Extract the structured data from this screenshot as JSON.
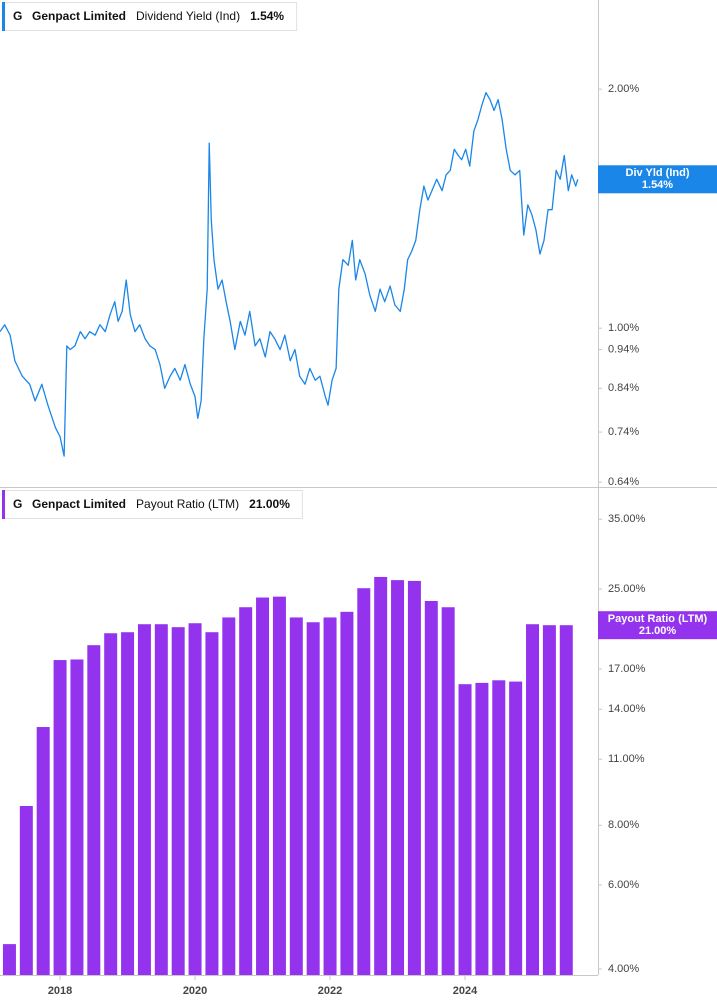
{
  "chart_data": [
    {
      "type": "line",
      "symbol": "G",
      "company": "Genpact Limited",
      "x": [
        2017.11,
        2017.18,
        2017.26,
        2017.33,
        2017.44,
        2017.55,
        2017.63,
        2017.73,
        2017.82,
        2017.93,
        2018.0,
        2018.06,
        2018.1,
        2018.15,
        2018.22,
        2018.3,
        2018.37,
        2018.44,
        2018.52,
        2018.59,
        2018.67,
        2018.74,
        2018.81,
        2018.86,
        2018.92,
        2018.98,
        2019.04,
        2019.11,
        2019.18,
        2019.26,
        2019.33,
        2019.41,
        2019.48,
        2019.55,
        2019.63,
        2019.7,
        2019.78,
        2019.85,
        2019.93,
        2020.0,
        2020.04,
        2020.09,
        2020.13,
        2020.18,
        2020.21,
        2020.24,
        2020.28,
        2020.34,
        2020.4,
        2020.46,
        2020.52,
        2020.59,
        2020.67,
        2020.74,
        2020.81,
        2020.89,
        2020.96,
        2021.04,
        2021.11,
        2021.18,
        2021.26,
        2021.33,
        2021.41,
        2021.48,
        2021.55,
        2021.63,
        2021.7,
        2021.78,
        2021.85,
        2021.93,
        2021.97,
        2022.03,
        2022.09,
        2022.13,
        2022.19,
        2022.27,
        2022.33,
        2022.38,
        2022.44,
        2022.52,
        2022.59,
        2022.67,
        2022.74,
        2022.81,
        2022.89,
        2022.96,
        2023.04,
        2023.1,
        2023.15,
        2023.21,
        2023.27,
        2023.33,
        2023.39,
        2023.45,
        2023.51,
        2023.58,
        2023.66,
        2023.72,
        2023.78,
        2023.84,
        2023.9,
        2023.95,
        2024.01,
        2024.07,
        2024.13,
        2024.19,
        2024.25,
        2024.31,
        2024.37,
        2024.43,
        2024.49,
        2024.55,
        2024.61,
        2024.67,
        2024.74,
        2024.81,
        2024.87,
        2024.93,
        2024.99,
        2025.05,
        2025.11,
        2025.17,
        2025.23,
        2025.29,
        2025.35,
        2025.41,
        2025.47,
        2025.53,
        2025.58,
        2025.64,
        2025.67
      ],
      "series": [
        {
          "name": "Dividend Yield (Ind)",
          "color": "#1a86e8",
          "values": [
            0.99,
            1.01,
            0.98,
            0.91,
            0.87,
            0.85,
            0.81,
            0.85,
            0.8,
            0.75,
            0.73,
            0.69,
            0.95,
            0.94,
            0.95,
            0.99,
            0.97,
            0.99,
            0.98,
            1.01,
            0.99,
            1.04,
            1.08,
            1.02,
            1.05,
            1.15,
            1.04,
            0.99,
            1.01,
            0.97,
            0.95,
            0.94,
            0.9,
            0.84,
            0.87,
            0.89,
            0.86,
            0.9,
            0.85,
            0.82,
            0.77,
            0.81,
            0.97,
            1.12,
            1.71,
            1.37,
            1.22,
            1.12,
            1.15,
            1.08,
            1.02,
            0.94,
            1.02,
            0.98,
            1.05,
            0.95,
            0.97,
            0.92,
            0.99,
            0.97,
            0.94,
            0.98,
            0.91,
            0.94,
            0.87,
            0.85,
            0.89,
            0.86,
            0.87,
            0.82,
            0.8,
            0.86,
            0.89,
            1.12,
            1.22,
            1.2,
            1.29,
            1.15,
            1.22,
            1.17,
            1.1,
            1.05,
            1.12,
            1.08,
            1.13,
            1.07,
            1.05,
            1.12,
            1.22,
            1.25,
            1.29,
            1.41,
            1.51,
            1.45,
            1.49,
            1.54,
            1.49,
            1.56,
            1.58,
            1.68,
            1.65,
            1.63,
            1.68,
            1.6,
            1.77,
            1.83,
            1.91,
            1.98,
            1.94,
            1.88,
            1.94,
            1.83,
            1.68,
            1.58,
            1.56,
            1.58,
            1.31,
            1.43,
            1.39,
            1.33,
            1.24,
            1.29,
            1.41,
            1.41,
            1.58,
            1.54,
            1.65,
            1.49,
            1.56,
            1.51,
            1.54
          ]
        }
      ],
      "current": {
        "value": 1.54,
        "value_label": "1.54%",
        "tag_label": "Div Yld (Ind)"
      },
      "log_scale": true,
      "xlim": [
        2017.11,
        2025.97
      ],
      "ylim": [
        0.631,
        2.59
      ],
      "yticks": [
        {
          "value": 2,
          "label": "2.00%"
        },
        {
          "value": 1,
          "label": "1.00%"
        },
        {
          "value": 0.94,
          "label": "0.94%"
        },
        {
          "value": 0.84,
          "label": "0.84%"
        },
        {
          "value": 0.74,
          "label": "0.74%"
        },
        {
          "value": 0.64,
          "label": "0.64%"
        }
      ]
    },
    {
      "type": "bar",
      "symbol": "G",
      "company": "Genpact Limited",
      "x": [
        2017.25,
        2017.5,
        2017.75,
        2018,
        2018.25,
        2018.5,
        2018.75,
        2019,
        2019.25,
        2019.5,
        2019.75,
        2020,
        2020.25,
        2020.5,
        2020.75,
        2021,
        2021.25,
        2021.5,
        2021.75,
        2022,
        2022.25,
        2022.5,
        2022.75,
        2023,
        2023.25,
        2023.5,
        2023.75,
        2024,
        2024.25,
        2024.5,
        2024.75,
        2025,
        2025.25,
        2025.5
      ],
      "series": [
        {
          "name": "Payout Ratio (LTM)",
          "color": "#9333ee",
          "values": [
            4.51,
            8.78,
            12.85,
            17.75,
            17.8,
            19.07,
            20.2,
            20.3,
            21.1,
            21.1,
            20.8,
            21.2,
            20.3,
            21.8,
            22.9,
            24.0,
            24.1,
            21.8,
            21.3,
            21.8,
            22.4,
            25.1,
            26.5,
            26.1,
            26.0,
            23.6,
            22.9,
            15.8,
            15.9,
            16.1,
            16.0,
            21.1,
            21.0,
            21.0
          ]
        }
      ],
      "current": {
        "value": 21,
        "value_label": "21.00%",
        "tag_label": "Payout Ratio (LTM)"
      },
      "log_scale": true,
      "xlim": [
        2017.11,
        2025.97
      ],
      "ylim": [
        3.886,
        40.7
      ],
      "xticks": [
        2018,
        2020,
        2022,
        2024
      ],
      "yticks": [
        {
          "value": 35,
          "label": "35.00%"
        },
        {
          "value": 25,
          "label": "25.00%"
        },
        {
          "value": 17,
          "label": "17.00%"
        },
        {
          "value": 14,
          "label": "14.00%"
        },
        {
          "value": 11,
          "label": "11.00%"
        },
        {
          "value": 8,
          "label": "8.00%"
        },
        {
          "value": 6,
          "label": "6.00%"
        },
        {
          "value": 4,
          "label": "4.00%"
        }
      ]
    }
  ]
}
